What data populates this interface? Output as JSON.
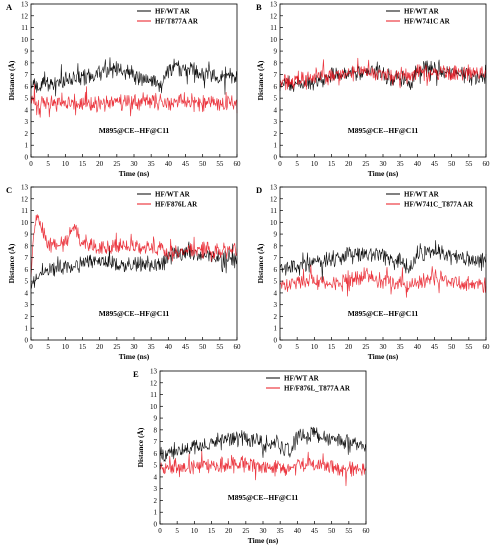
{
  "chart_data": [
    {
      "type": "line",
      "panel_label": "A",
      "xlabel": "Time (ns)",
      "ylabel": "Distance (Å)",
      "xlim": [
        0,
        60
      ],
      "ylim": [
        0,
        13
      ],
      "xticks": [
        0,
        5,
        10,
        15,
        20,
        25,
        30,
        35,
        40,
        45,
        50,
        55,
        60
      ],
      "yticks": [
        0,
        1,
        2,
        3,
        4,
        5,
        6,
        7,
        8,
        9,
        10,
        11,
        12,
        13
      ],
      "annotation": "M895@CE--HF@C11",
      "legend_position": "top-right",
      "series": [
        {
          "name": "HF/WT AR",
          "color": "#000000",
          "x": [
            0,
            5,
            10,
            15,
            20,
            25,
            30,
            35,
            38,
            40,
            45,
            50,
            55,
            60
          ],
          "y": [
            6.0,
            6.2,
            6.5,
            6.8,
            7.2,
            7.4,
            7.0,
            6.6,
            6.2,
            7.4,
            7.6,
            7.1,
            6.9,
            6.8
          ]
        },
        {
          "name": "HF/T877A AR",
          "color": "#e8141e",
          "x": [
            0,
            5,
            10,
            15,
            20,
            25,
            30,
            35,
            38,
            40,
            45,
            50,
            55,
            60
          ],
          "y": [
            4.7,
            4.6,
            4.8,
            4.6,
            4.5,
            4.7,
            4.6,
            4.8,
            4.6,
            4.5,
            4.8,
            4.6,
            4.5,
            4.6
          ]
        }
      ]
    },
    {
      "type": "line",
      "panel_label": "B",
      "xlabel": "Time (ns)",
      "ylabel": "Distance (Å)",
      "xlim": [
        0,
        60
      ],
      "ylim": [
        0,
        13
      ],
      "xticks": [
        0,
        5,
        10,
        15,
        20,
        25,
        30,
        35,
        40,
        45,
        50,
        55,
        60
      ],
      "yticks": [
        0,
        1,
        2,
        3,
        4,
        5,
        6,
        7,
        8,
        9,
        10,
        11,
        12,
        13
      ],
      "annotation": "M895@CE--HF@C11",
      "legend_position": "top-right",
      "series": [
        {
          "name": "HF/WT AR",
          "color": "#000000",
          "x": [
            0,
            5,
            10,
            15,
            20,
            25,
            30,
            35,
            38,
            40,
            45,
            50,
            55,
            60
          ],
          "y": [
            6.0,
            6.2,
            6.5,
            6.8,
            7.2,
            7.4,
            7.0,
            6.6,
            6.2,
            7.4,
            7.6,
            7.1,
            6.9,
            6.8
          ]
        },
        {
          "name": "HF/W741C AR",
          "color": "#e8141e",
          "x": [
            0,
            5,
            10,
            15,
            20,
            25,
            30,
            35,
            38,
            40,
            45,
            50,
            55,
            60
          ],
          "y": [
            6.3,
            6.5,
            6.8,
            7.0,
            7.1,
            7.3,
            7.0,
            6.9,
            6.8,
            7.2,
            7.3,
            7.1,
            7.2,
            7.0
          ]
        }
      ]
    },
    {
      "type": "line",
      "panel_label": "C",
      "xlabel": "Time (ns)",
      "ylabel": "Distance (Å)",
      "xlim": [
        0,
        60
      ],
      "ylim": [
        0,
        13
      ],
      "xticks": [
        0,
        5,
        10,
        15,
        20,
        25,
        30,
        35,
        40,
        45,
        50,
        55,
        60
      ],
      "yticks": [
        0,
        1,
        2,
        3,
        4,
        5,
        6,
        7,
        8,
        9,
        10,
        11,
        12,
        13
      ],
      "annotation": "M895@CE--HF@C11",
      "legend_position": "top-right",
      "series": [
        {
          "name": "HF/WT AR",
          "color": "#000000",
          "x": [
            0,
            2,
            5,
            10,
            15,
            20,
            25,
            30,
            35,
            38,
            40,
            45,
            50,
            55,
            60
          ],
          "y": [
            4.5,
            5.5,
            6.0,
            6.2,
            6.5,
            6.8,
            6.4,
            6.3,
            6.5,
            6.3,
            7.2,
            7.4,
            7.2,
            7.0,
            6.8
          ]
        },
        {
          "name": "HF/F876L AR",
          "color": "#e8141e",
          "x": [
            0,
            1,
            2,
            5,
            10,
            12,
            15,
            20,
            25,
            30,
            35,
            38,
            40,
            45,
            50,
            55,
            60
          ],
          "y": [
            5.5,
            9.5,
            10.5,
            8.0,
            8.3,
            9.5,
            8.4,
            7.8,
            8.0,
            7.9,
            7.8,
            7.9,
            7.4,
            7.5,
            7.6,
            7.5,
            7.7
          ]
        }
      ]
    },
    {
      "type": "line",
      "panel_label": "D",
      "xlabel": "Time (ns)",
      "ylabel": "Distance (Å)",
      "xlim": [
        0,
        60
      ],
      "ylim": [
        0,
        13
      ],
      "xticks": [
        0,
        5,
        10,
        15,
        20,
        25,
        30,
        35,
        40,
        45,
        50,
        55,
        60
      ],
      "yticks": [
        0,
        1,
        2,
        3,
        4,
        5,
        6,
        7,
        8,
        9,
        10,
        11,
        12,
        13
      ],
      "annotation": "M895@CE--HF@C11",
      "legend_position": "top-right",
      "series": [
        {
          "name": "HF/WT AR",
          "color": "#000000",
          "x": [
            0,
            5,
            10,
            15,
            20,
            25,
            30,
            35,
            38,
            40,
            45,
            50,
            55,
            60
          ],
          "y": [
            6.0,
            6.2,
            6.5,
            6.8,
            7.2,
            7.4,
            7.0,
            6.6,
            6.2,
            7.4,
            7.6,
            7.1,
            6.9,
            6.8
          ]
        },
        {
          "name": "HF/W741C_T877A AR",
          "color": "#e8141e",
          "x": [
            0,
            5,
            10,
            15,
            20,
            25,
            30,
            35,
            38,
            40,
            45,
            50,
            55,
            60
          ],
          "y": [
            4.6,
            4.8,
            5.0,
            4.7,
            5.2,
            5.5,
            5.0,
            4.8,
            4.7,
            5.0,
            5.3,
            4.9,
            4.7,
            4.8
          ]
        }
      ]
    },
    {
      "type": "line",
      "panel_label": "E",
      "xlabel": "Time (ns)",
      "ylabel": "Distance (Å)",
      "xlim": [
        0,
        60
      ],
      "ylim": [
        0,
        13
      ],
      "xticks": [
        0,
        5,
        10,
        15,
        20,
        25,
        30,
        35,
        40,
        45,
        50,
        55,
        60
      ],
      "yticks": [
        0,
        1,
        2,
        3,
        4,
        5,
        6,
        7,
        8,
        9,
        10,
        11,
        12,
        13
      ],
      "annotation": "M895@CE--HF@C11",
      "legend_position": "top-right",
      "series": [
        {
          "name": "HF/WT AR",
          "color": "#000000",
          "x": [
            0,
            5,
            10,
            15,
            20,
            25,
            30,
            35,
            38,
            40,
            45,
            50,
            55,
            60
          ],
          "y": [
            6.0,
            6.2,
            6.5,
            6.8,
            7.2,
            7.4,
            7.0,
            6.6,
            6.2,
            7.4,
            7.6,
            7.1,
            6.9,
            6.8
          ]
        },
        {
          "name": "HF/F876L_T877A AR",
          "color": "#e8141e",
          "x": [
            0,
            5,
            10,
            15,
            20,
            25,
            30,
            35,
            38,
            40,
            45,
            50,
            55,
            60
          ],
          "y": [
            4.8,
            4.7,
            4.9,
            4.8,
            5.0,
            5.2,
            4.9,
            4.8,
            4.7,
            5.0,
            5.1,
            4.8,
            4.7,
            4.8
          ]
        }
      ]
    }
  ]
}
